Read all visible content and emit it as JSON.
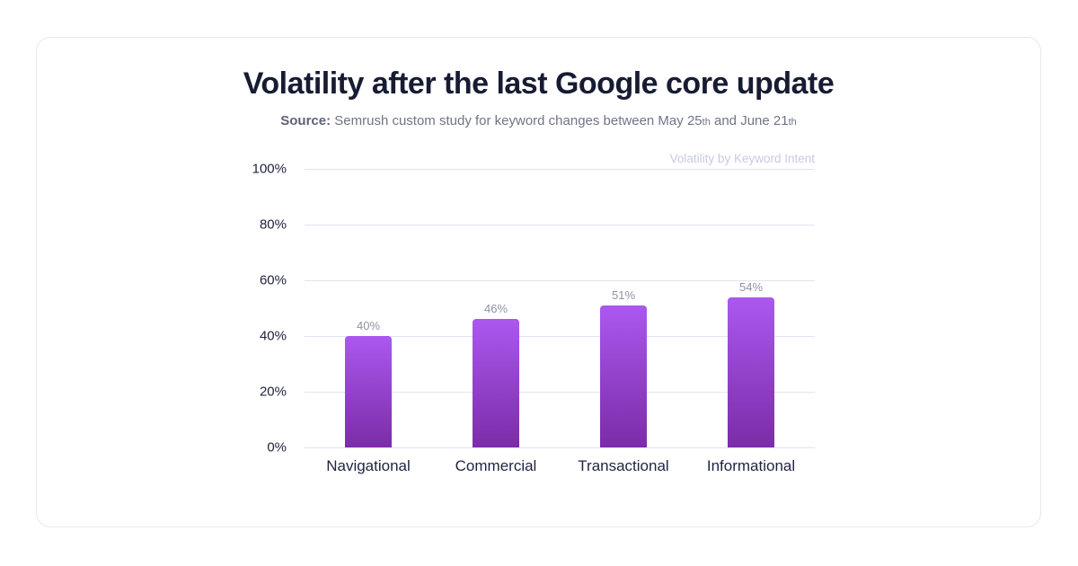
{
  "page": {
    "title": "Volatility after the last Google core update",
    "subtitle": {
      "source_label": "Source:",
      "text_part1": " Semrush custom study for keyword changes between May 25",
      "ordinal1": "th",
      "text_part2": " and June 21",
      "ordinal2": "th"
    }
  },
  "chart_data": {
    "type": "bar",
    "title": "Volatility by Keyword Intent",
    "categories": [
      "Navigational",
      "Commercial",
      "Transactional",
      "Informational"
    ],
    "values": [
      40,
      46,
      51,
      54
    ],
    "value_labels": [
      "40%",
      "46%",
      "51%",
      "54%"
    ],
    "xlabel": "",
    "ylabel": "",
    "ylim": [
      0,
      100
    ],
    "yticks": [
      "0%",
      "20%",
      "40%",
      "60%",
      "80%",
      "100%"
    ],
    "grid": true,
    "legend_position": "top-right",
    "colors": {
      "bar_gradient_top": "#ab58f0",
      "bar_gradient_bottom": "#7b2ca7",
      "gridline": "#e0e4f2",
      "value_label": "#8e94a4",
      "axis_tick_label": "#20253c",
      "category_label": "#1e2440",
      "chart_title": "#c6cbe0",
      "page_title": "#171c33",
      "subtitle": "#6f7587",
      "card_border": "#e7e8ea"
    }
  }
}
